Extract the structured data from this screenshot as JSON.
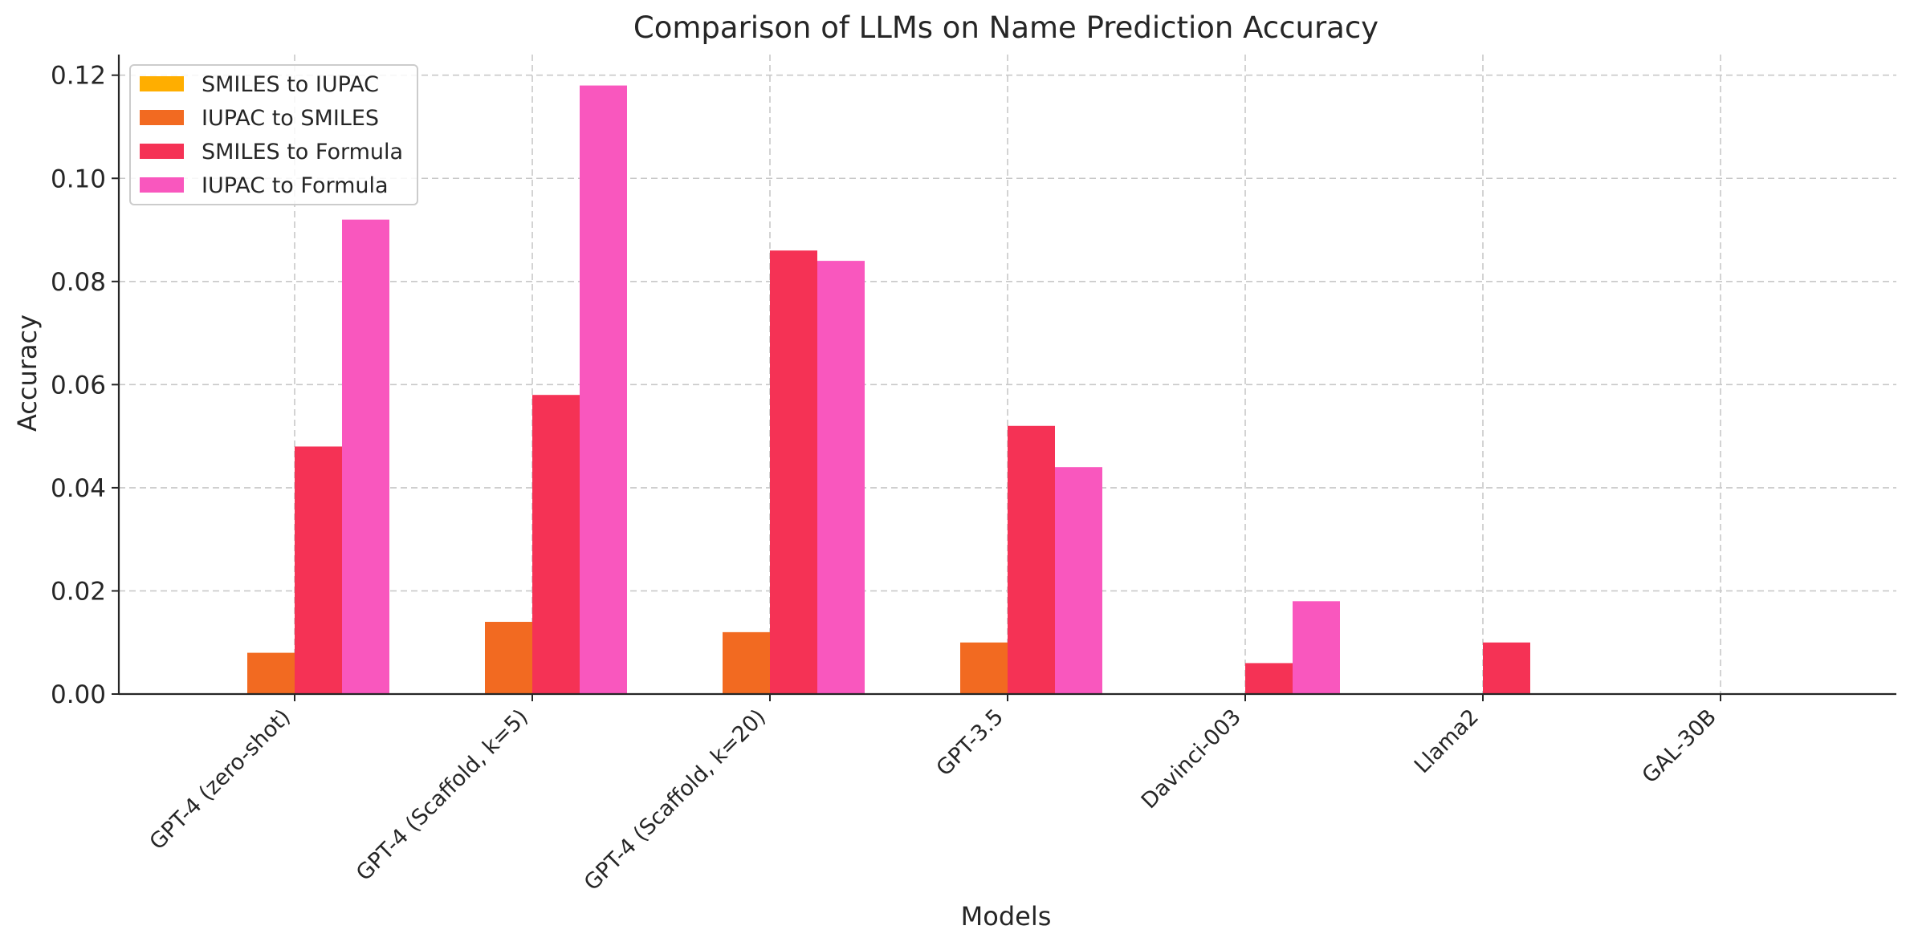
{
  "chart_data": {
    "type": "bar",
    "title": "Comparison of LLMs on Name Prediction Accuracy",
    "xlabel": "Models",
    "ylabel": "Accuracy",
    "ylim": [
      0,
      0.124
    ],
    "yticks": [
      "0.00",
      "0.02",
      "0.04",
      "0.06",
      "0.08",
      "0.10",
      "0.12"
    ],
    "ytick_values": [
      0,
      0.02,
      0.04,
      0.06,
      0.08,
      0.1,
      0.12
    ],
    "grid": true,
    "legend_position": "top-left",
    "categories": [
      "GPT-4 (zero-shot)",
      "GPT-4 (Scaffold, k=5)",
      "GPT-4 (Scaffold, k=20)",
      "GPT-3.5",
      "Davinci-003",
      "Llama2",
      "GAL-30B"
    ],
    "series": [
      {
        "name": "SMILES to IUPAC",
        "color": "#FFAE00",
        "values": [
          0,
          0,
          0,
          0,
          0,
          0,
          0
        ]
      },
      {
        "name": "IUPAC to SMILES",
        "color": "#F26A21",
        "values": [
          0.008,
          0.014,
          0.012,
          0.01,
          0,
          0,
          0
        ]
      },
      {
        "name": "SMILES to Formula",
        "color": "#F53255",
        "values": [
          0.048,
          0.058,
          0.086,
          0.052,
          0.006,
          0.01,
          0
        ]
      },
      {
        "name": "IUPAC to Formula",
        "color": "#F957BE",
        "values": [
          0.092,
          0.118,
          0.084,
          0.044,
          0.018,
          0,
          0
        ]
      }
    ]
  }
}
